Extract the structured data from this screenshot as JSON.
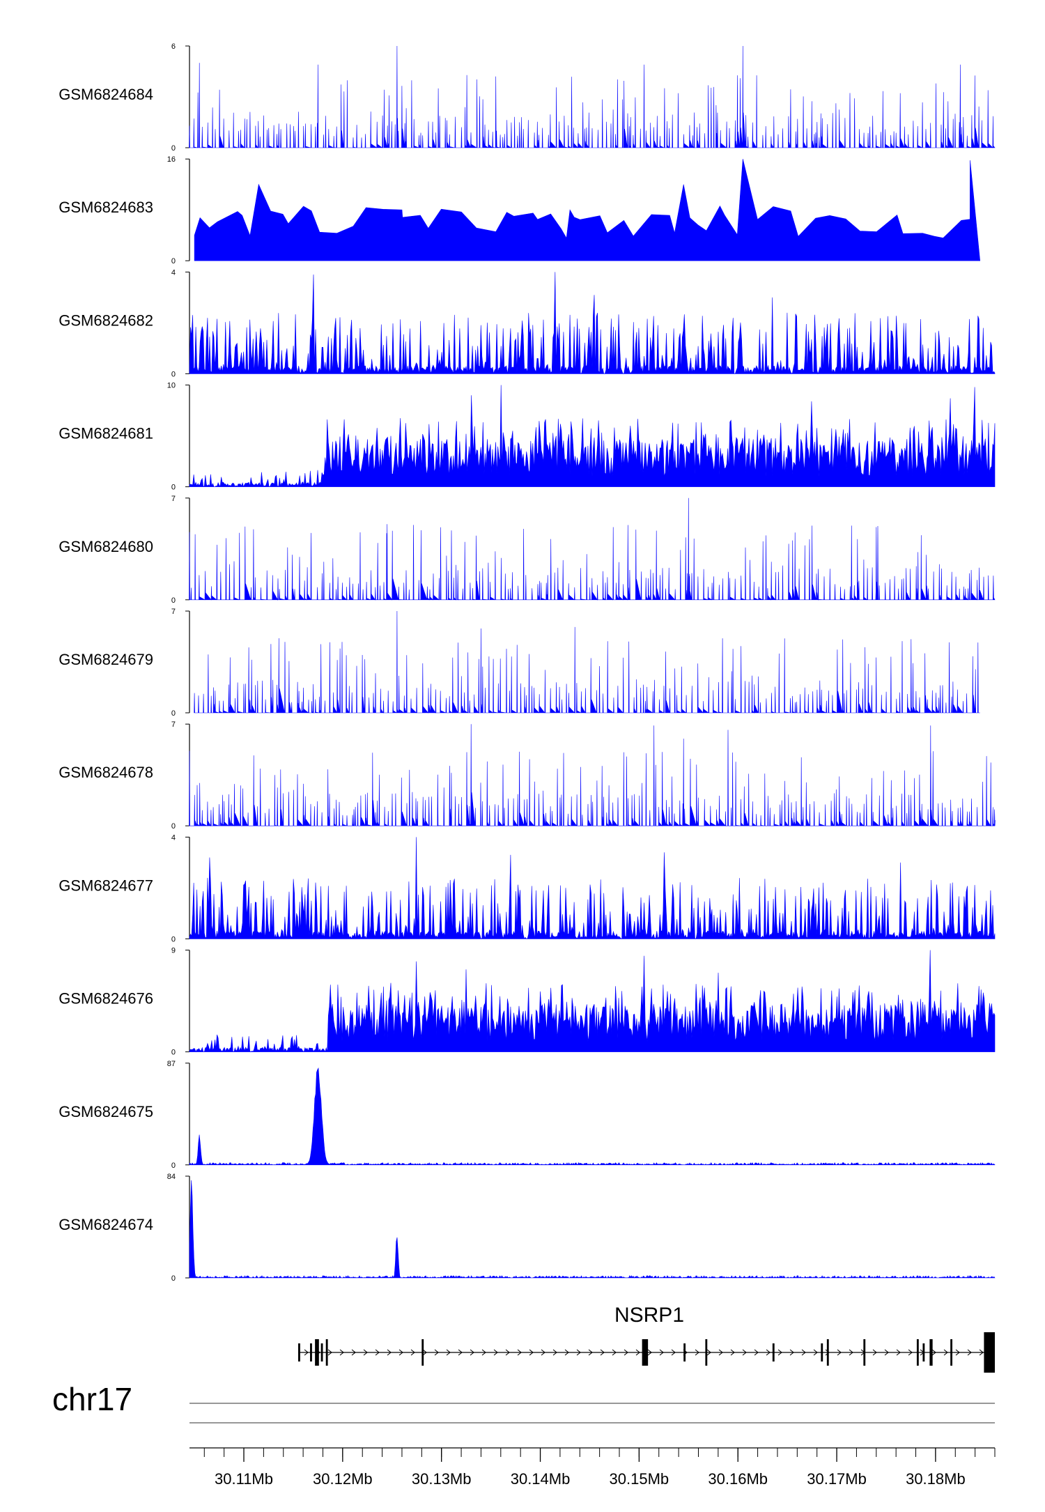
{
  "chart_data": {
    "type": "area",
    "genome": {
      "chromosome": "chr17",
      "x_range": [
        30.1045,
        30.186
      ],
      "ticks_mb": [
        30.11,
        30.12,
        30.13,
        30.14,
        30.15,
        30.16,
        30.17,
        30.18
      ],
      "tick_labels": [
        "30.11Mb",
        "30.12Mb",
        "30.13Mb",
        "30.14Mb",
        "30.15Mb",
        "30.16Mb",
        "30.17Mb",
        "30.18Mb"
      ],
      "minor_tick_step_mb": 0.002
    },
    "colors": {
      "signal": "#0000ff",
      "gene": "#000000",
      "axis": "#000000"
    },
    "tracks": [
      {
        "name": "GSM6824684",
        "ylim": [
          0,
          6
        ],
        "y_max_label": "6",
        "y_min_label": "0",
        "pattern": "sparse",
        "start": 30.1045,
        "end": 30.186,
        "seed": 11,
        "peaks": [
          {
            "x": 30.1255,
            "y": 6.0
          },
          {
            "x": 30.1605,
            "y": 6.0
          },
          {
            "x": 30.1505,
            "y": 4.9
          },
          {
            "x": 30.1175,
            "y": 4.9
          },
          {
            "x": 30.1825,
            "y": 4.9
          },
          {
            "x": 30.1055,
            "y": 5.0
          },
          {
            "x": 30.1355,
            "y": 4.2
          }
        ]
      },
      {
        "name": "GSM6824683",
        "ylim": [
          0,
          16
        ],
        "y_max_label": "16",
        "y_min_label": "0",
        "pattern": "triangles",
        "start": 30.105,
        "end": 30.1845,
        "seed": 23,
        "peaks": [
          {
            "x": 30.1605,
            "y": 16.0
          },
          {
            "x": 30.1835,
            "y": 15.8
          },
          {
            "x": 30.1115,
            "y": 12.0
          },
          {
            "x": 30.1545,
            "y": 12.0
          },
          {
            "x": 30.143,
            "y": 8.0
          },
          {
            "x": 30.126,
            "y": 8.0
          }
        ]
      },
      {
        "name": "GSM6824682",
        "ylim": [
          0,
          4
        ],
        "y_max_label": "4",
        "y_min_label": "0",
        "pattern": "dense",
        "start": 30.1045,
        "end": 30.186,
        "seed": 37,
        "peaks": [
          {
            "x": 30.1415,
            "y": 4.0
          },
          {
            "x": 30.117,
            "y": 3.9
          },
          {
            "x": 30.1455,
            "y": 3.1
          },
          {
            "x": 30.1635,
            "y": 3.0
          }
        ]
      },
      {
        "name": "GSM6824681",
        "ylim": [
          0,
          10
        ],
        "y_max_label": "10",
        "y_min_label": "0",
        "pattern": "dense-shift",
        "shift_x": 30.118,
        "start": 30.1045,
        "end": 30.186,
        "seed": 41,
        "peaks": [
          {
            "x": 30.136,
            "y": 10.0
          },
          {
            "x": 30.184,
            "y": 9.8
          },
          {
            "x": 30.1815,
            "y": 8.7
          },
          {
            "x": 30.133,
            "y": 9.0
          },
          {
            "x": 30.1675,
            "y": 8.4
          }
        ]
      },
      {
        "name": "GSM6824680",
        "ylim": [
          0,
          7
        ],
        "y_max_label": "7",
        "y_min_label": "0",
        "pattern": "sparse",
        "start": 30.1045,
        "end": 30.186,
        "seed": 53,
        "peaks": [
          {
            "x": 30.155,
            "y": 7.0
          },
          {
            "x": 30.1245,
            "y": 5.2
          },
          {
            "x": 30.1675,
            "y": 5.1
          },
          {
            "x": 30.1715,
            "y": 5.1
          },
          {
            "x": 30.174,
            "y": 5.0
          }
        ]
      },
      {
        "name": "GSM6824679",
        "ylim": [
          0,
          7
        ],
        "y_max_label": "7",
        "y_min_label": "0",
        "pattern": "sparse",
        "start": 30.105,
        "end": 30.1845,
        "seed": 67,
        "peaks": [
          {
            "x": 30.1255,
            "y": 7.0
          },
          {
            "x": 30.134,
            "y": 5.8
          },
          {
            "x": 30.1435,
            "y": 5.9
          },
          {
            "x": 30.1105,
            "y": 4.5
          },
          {
            "x": 30.1595,
            "y": 4.4
          }
        ]
      },
      {
        "name": "GSM6824678",
        "ylim": [
          0,
          7
        ],
        "y_max_label": "7",
        "y_min_label": "0",
        "pattern": "sparse",
        "start": 30.1045,
        "end": 30.186,
        "seed": 79,
        "peaks": [
          {
            "x": 30.133,
            "y": 7.0
          },
          {
            "x": 30.1515,
            "y": 6.9
          },
          {
            "x": 30.1795,
            "y": 6.9
          },
          {
            "x": 30.1545,
            "y": 6.0
          },
          {
            "x": 30.159,
            "y": 6.6
          }
        ]
      },
      {
        "name": "GSM6824677",
        "ylim": [
          0,
          4
        ],
        "y_max_label": "4",
        "y_min_label": "0",
        "pattern": "dense",
        "start": 30.1045,
        "end": 30.186,
        "seed": 83,
        "peaks": [
          {
            "x": 30.1275,
            "y": 4.0
          },
          {
            "x": 30.1525,
            "y": 3.4
          },
          {
            "x": 30.137,
            "y": 3.3
          },
          {
            "x": 30.1065,
            "y": 3.2
          },
          {
            "x": 30.1765,
            "y": 3.0
          }
        ]
      },
      {
        "name": "GSM6824676",
        "ylim": [
          0,
          9
        ],
        "y_max_label": "9",
        "y_min_label": "0",
        "pattern": "dense-shift",
        "shift_x": 30.1185,
        "start": 30.1045,
        "end": 30.186,
        "seed": 97,
        "peaks": [
          {
            "x": 30.1795,
            "y": 9.0
          },
          {
            "x": 30.1275,
            "y": 8.0
          },
          {
            "x": 30.1505,
            "y": 8.5
          },
          {
            "x": 30.1325,
            "y": 7.3
          },
          {
            "x": 30.158,
            "y": 7.0
          }
        ]
      },
      {
        "name": "GSM6824675",
        "ylim": [
          0,
          87
        ],
        "y_max_label": "87",
        "y_min_label": "0",
        "pattern": "flat",
        "start": 30.1045,
        "end": 30.186,
        "seed": 101,
        "peaks": [
          {
            "x": 30.1175,
            "y": 87.0,
            "w": 0.0005
          },
          {
            "x": 30.1055,
            "y": 27.0,
            "w": 0.00018
          }
        ]
      },
      {
        "name": "GSM6824674",
        "ylim": [
          0,
          84
        ],
        "y_max_label": "84",
        "y_min_label": "0",
        "pattern": "flat",
        "start": 30.1045,
        "end": 30.186,
        "seed": 113,
        "peaks": [
          {
            "x": 30.1047,
            "y": 84.0,
            "w": 0.0002
          },
          {
            "x": 30.1255,
            "y": 40.0,
            "w": 0.00016
          }
        ]
      }
    ],
    "gene": {
      "name": "NSRP1",
      "strand": "+",
      "start": 30.1155,
      "end": 30.186,
      "exons": [
        {
          "s": 30.1155,
          "e": 30.1157,
          "h": "s"
        },
        {
          "s": 30.1167,
          "e": 30.1169,
          "h": "s"
        },
        {
          "s": 30.1172,
          "e": 30.1176,
          "h": "m"
        },
        {
          "s": 30.1178,
          "e": 30.118,
          "h": "s"
        },
        {
          "s": 30.1183,
          "e": 30.1185,
          "h": "m"
        },
        {
          "s": 30.128,
          "e": 30.1282,
          "h": "m"
        },
        {
          "s": 30.1503,
          "e": 30.1509,
          "h": "m"
        },
        {
          "s": 30.1545,
          "e": 30.1547,
          "h": "s"
        },
        {
          "s": 30.1567,
          "e": 30.1569,
          "h": "m"
        },
        {
          "s": 30.1635,
          "e": 30.1637,
          "h": "s"
        },
        {
          "s": 30.1684,
          "e": 30.1686,
          "h": "s"
        },
        {
          "s": 30.169,
          "e": 30.1692,
          "h": "m"
        },
        {
          "s": 30.1727,
          "e": 30.1729,
          "h": "m"
        },
        {
          "s": 30.1781,
          "e": 30.1783,
          "h": "m"
        },
        {
          "s": 30.1787,
          "e": 30.1789,
          "h": "s"
        },
        {
          "s": 30.1794,
          "e": 30.1797,
          "h": "m"
        },
        {
          "s": 30.1815,
          "e": 30.1817,
          "h": "m"
        },
        {
          "s": 30.1849,
          "e": 30.186,
          "h": "l"
        }
      ]
    }
  }
}
